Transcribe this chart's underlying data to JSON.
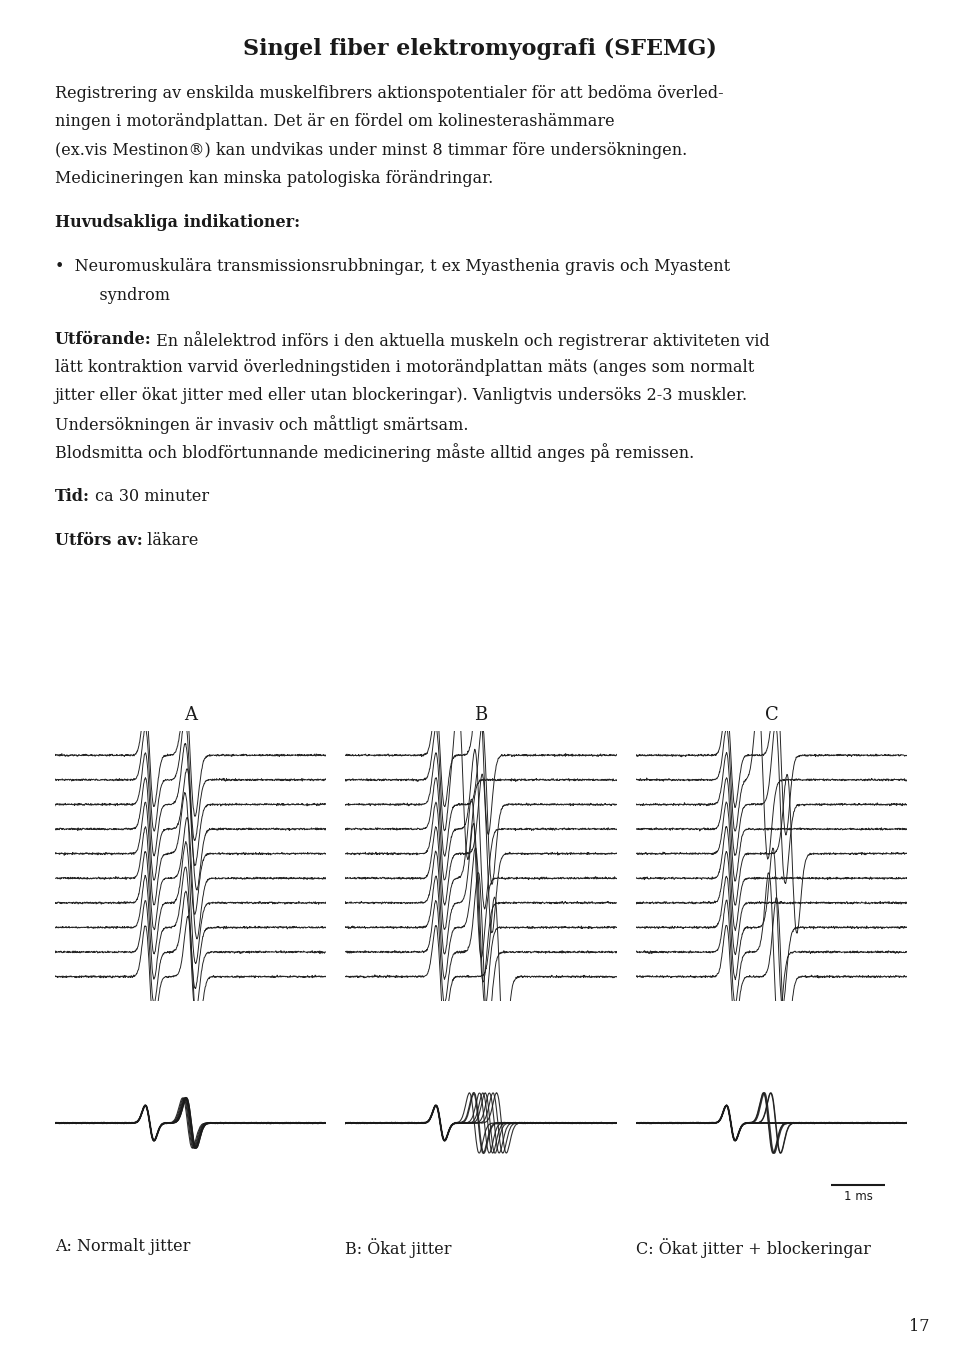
{
  "title": "Singel fiber elektromyografi (SFEMG)",
  "para1": "Registrering av enskilda muskelfibrers aktionspotentialer för att bedöma överled-\nningen i motorändplattan. Det är en fördel om kolinesterashämmare\n(ex.vis Mestinon®) kan undvikas under minst 8 timmar före undersökningen.\nMedicineringen kan minska patologiska förändringar.",
  "para2_bold": "Huvudsakliga indikationer:",
  "para3_bullet": "Neuromuskulära transmissionsrubbningar, t ex Myasthenia gravis och Myastent\n    syndrom",
  "para4_bold": "Utförande:",
  "para4_rest": " En nålelektrod införs i den aktuella muskeln och registrerar aktiviteten vid\nlätt kontraktion varvid överledningstiden i motorändplattan mäts (anges som normalt\njitter eller ökat jitter med eller utan blockeringar). Vanligtvis undersöks 2-3 muskler.\nUndersökningen är invasiv och måttligt smärtsam.\nBlodsmitta och blodförtunnande medicinering måste alltid anges på remissen.",
  "para5_bold": "Tid:",
  "para5_rest": " ca 30 minuter",
  "para6_bold": "Utförs av:",
  "para6_rest": " läkare",
  "panel_labels": [
    "A",
    "B",
    "C"
  ],
  "panel_sublabels": [
    "A: Normalt jitter",
    "B: Ökat jitter",
    "C: Ökat jitter + blockeringar"
  ],
  "scale_bar_label": "1 ms",
  "page_number": "17",
  "background_color": "#ffffff",
  "text_color": "#1a1a1a",
  "font_size_title": 16,
  "font_size_body": 11.5
}
